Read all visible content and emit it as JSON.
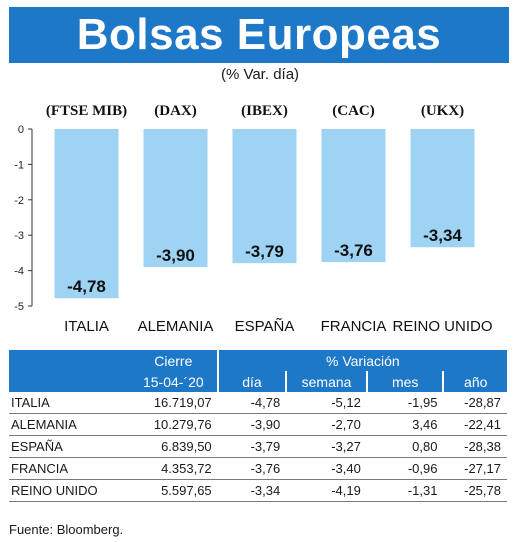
{
  "title": "Bolsas Europeas",
  "subtitle": "(% Var. día)",
  "chart_data": {
    "type": "bar",
    "categories": [
      "ITALIA",
      "ALEMANIA",
      "ESPAÑA",
      "FRANCIA",
      "REINO UNIDO"
    ],
    "indices": [
      "(FTSE MIB)",
      "(DAX)",
      "(IBEX)",
      "(CAC)",
      "(UKX)"
    ],
    "values": [
      -4.78,
      -3.9,
      -3.79,
      -3.76,
      -3.34
    ],
    "value_labels": [
      "-4,78",
      "-3,90",
      "-3,79",
      "-3,76",
      "-3,34"
    ],
    "ylim": [
      -5,
      0
    ],
    "yticks": [
      0,
      -1,
      -2,
      -3,
      -4,
      -5
    ],
    "bar_color": "#9ed3f3",
    "grid": false
  },
  "table": {
    "header_close": "Cierre",
    "header_close_date": "15-04-´20",
    "header_var": "% Variación",
    "columns": [
      "día",
      "semana",
      "mes",
      "año"
    ],
    "rows": [
      {
        "name": "ITALIA",
        "close": "16.719,07",
        "dia": "-4,78",
        "semana": "-5,12",
        "mes": "-1,95",
        "ano": "-28,87"
      },
      {
        "name": "ALEMANIA",
        "close": "10.279,76",
        "dia": "-3,90",
        "semana": "-2,70",
        "mes": "3,46",
        "ano": "-22,41"
      },
      {
        "name": "ESPAÑA",
        "close": "6.839,50",
        "dia": "-3,79",
        "semana": "-3,27",
        "mes": "0,80",
        "ano": "-28,38"
      },
      {
        "name": "FRANCIA",
        "close": "4.353,72",
        "dia": "-3,76",
        "semana": "-3,40",
        "mes": "-0,96",
        "ano": "-27,17"
      },
      {
        "name": "REINO UNIDO",
        "close": "5.597,65",
        "dia": "-3,34",
        "semana": "-4,19",
        "mes": "-1,31",
        "ano": "-25,78"
      }
    ]
  },
  "source": "Fuente: Bloomberg.",
  "colors": {
    "header_blue": "#1e78c8",
    "bar": "#9ed3f3"
  }
}
